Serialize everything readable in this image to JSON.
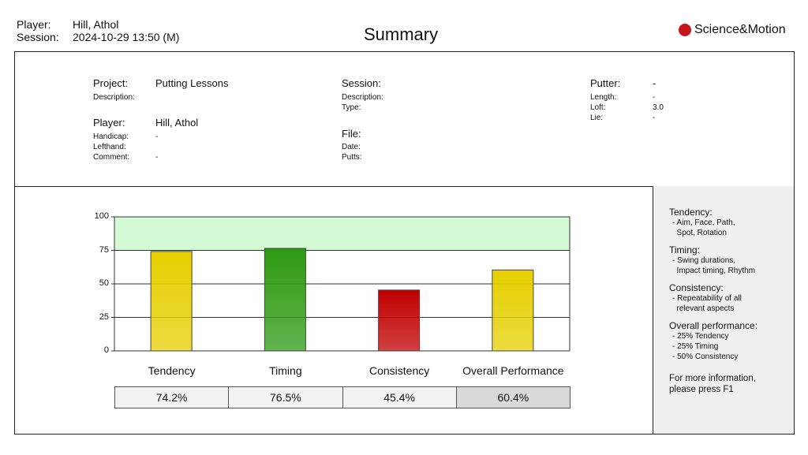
{
  "header": {
    "player_label": "Player:",
    "player": "Hill, Athol",
    "session_label": "Session:",
    "session": "2024-10-29 13:50 (M)",
    "title": "Summary",
    "logo": "Science&Motion"
  },
  "info": {
    "project_label": "Project:",
    "project": "Putting Lessons",
    "description_label": "Description:",
    "player_label": "Player:",
    "player": "Hill, Athol",
    "handicap_label": "Handicap:",
    "handicap": "-",
    "lefthand_label": "Lefthand:",
    "comment_label": "Comment:",
    "comment": "-",
    "session_label": "Session:",
    "session_description_label": "Description:",
    "type_label": "Type:",
    "file_label": "File:",
    "date_label": "Date:",
    "putts_label": "Putts:",
    "putter_label": "Putter:",
    "putter": "-",
    "length_label": "Length:",
    "length": "-",
    "loft_label": "Loft:",
    "loft": "3.0",
    "lie_label": "Lie:",
    "lie": "-"
  },
  "legend": {
    "tendency": "Tendency:",
    "tendency_desc": "- Aim, Face, Path,\n  Spot, Rotation",
    "timing": "Timing:",
    "timing_desc": "- Swing durations,\n  Impact timing, Rhythm",
    "consistency": "Consistency:",
    "consistency_desc": "- Repeatability of all\n  relevant aspects",
    "overall": "Overall performance:",
    "overall_desc": "- 25% Tendency\n- 25% Timing\n- 50% Consistency",
    "help": "For more information,\nplease press F1"
  },
  "chart_data": {
    "type": "bar",
    "categories": [
      "Tendency",
      "Timing",
      "Consistency",
      "Overall Performance"
    ],
    "values": [
      74.2,
      76.5,
      45.4,
      60.4
    ],
    "value_labels": [
      "74.2%",
      "76.5%",
      "45.4%",
      "60.4%"
    ],
    "ylim": [
      0,
      100
    ],
    "yticks": [
      "0",
      "25",
      "50",
      "75",
      "100"
    ],
    "target_band": [
      75,
      100
    ],
    "colors": [
      "#e6cf00",
      "#2e9a12",
      "#c00000",
      "#e6cf00"
    ],
    "band_color": "#d4fad4"
  }
}
